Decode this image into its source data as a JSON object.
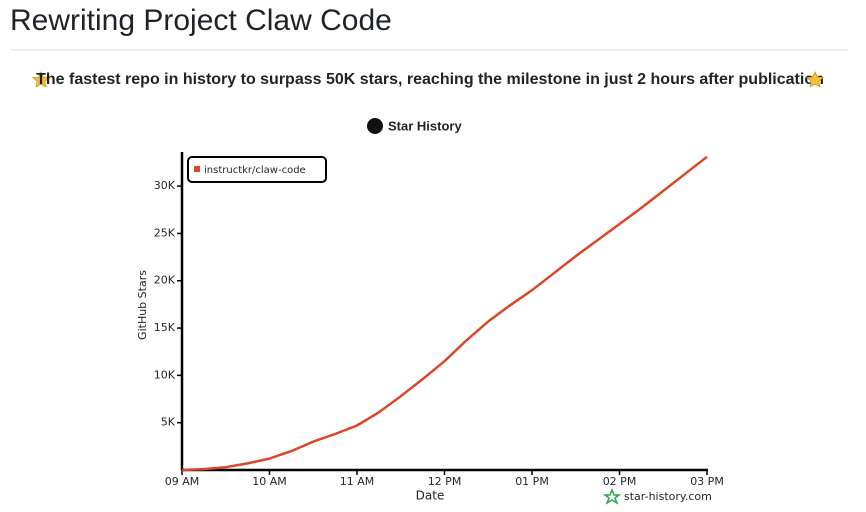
{
  "header": {
    "title": "Rewriting Project Claw Code",
    "subtitle": "The fastest repo in history to surpass 50K stars, reaching the milestone in just 2 hours after publication"
  },
  "chart_data": {
    "type": "line",
    "title": "Star History",
    "x_label": "Date",
    "y_label": "GitHub Stars",
    "watermark": "star-history.com",
    "x": [
      9,
      9.25,
      9.5,
      9.75,
      10,
      10.25,
      10.5,
      10.75,
      11,
      11.25,
      11.5,
      11.75,
      12,
      12.25,
      12.5,
      12.75,
      13,
      13.25,
      13.5,
      13.75,
      14,
      14.25,
      14.5,
      14.75,
      15
    ],
    "series": [
      {
        "name": "instructkr/claw-code",
        "color": "#dd4528",
        "values": [
          0,
          100,
          300,
          700,
          1200,
          2000,
          3000,
          3800,
          4700,
          6100,
          7800,
          9600,
          11500,
          13700,
          15700,
          17400,
          19000,
          20800,
          22600,
          24300,
          26000,
          27700,
          29500,
          31300,
          33100
        ]
      }
    ],
    "xlim": [
      9,
      15
    ],
    "ylim": [
      0,
      33500
    ],
    "xticks": [
      {
        "value": 9,
        "label": "09 AM"
      },
      {
        "value": 10,
        "label": "10 AM"
      },
      {
        "value": 11,
        "label": "11 AM"
      },
      {
        "value": 12,
        "label": "12 PM"
      },
      {
        "value": 13,
        "label": "01 PM"
      },
      {
        "value": 14,
        "label": "02 PM"
      },
      {
        "value": 15,
        "label": "03 PM"
      }
    ],
    "yticks": [
      {
        "value": 5000,
        "label": "5K"
      },
      {
        "value": 10000,
        "label": "10K"
      },
      {
        "value": 15000,
        "label": "15K"
      },
      {
        "value": 20000,
        "label": "20K"
      },
      {
        "value": 25000,
        "label": "25K"
      },
      {
        "value": 30000,
        "label": "30K"
      }
    ],
    "legend": "upper left",
    "grid": false
  }
}
